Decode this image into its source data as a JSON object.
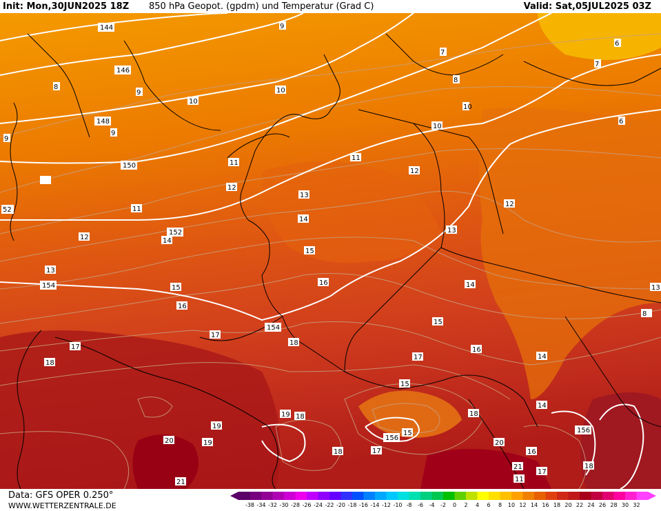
{
  "header": {
    "init": "Init: Mon,30JUN2025 18Z",
    "title": "850 hPa Geopot. (gpdm) und Temperatur (Grad C)",
    "valid": "Valid: Sat,05JUL2025 03Z"
  },
  "footer": {
    "data_source": "Data: GFS OPER 0.250°",
    "website": "WWW.WETTERZENTRALE.DE"
  },
  "colors": {
    "background_field": "#d9461e",
    "geopotential_contour": "#ffffff",
    "isotherm": "#c0a080",
    "borders": "#000000"
  },
  "color_scale": {
    "ticks": [
      "-38",
      "-34",
      "-32",
      "-30",
      "-28",
      "-26",
      "-24",
      "-22",
      "-20",
      "-18",
      "-16",
      "-14",
      "-12",
      "-10",
      "-8",
      "-6",
      "-4",
      "-2",
      "0",
      "2",
      "4",
      "6",
      "8",
      "10",
      "12",
      "14",
      "16",
      "18",
      "20",
      "22",
      "24",
      "26",
      "28",
      "30",
      "32"
    ],
    "swatches": [
      "#5a0068",
      "#76007e",
      "#920096",
      "#b000b4",
      "#cc00d4",
      "#ee00ee",
      "#c000ff",
      "#9000ff",
      "#6400ff",
      "#3030ff",
      "#0050ff",
      "#0080ff",
      "#00a8ff",
      "#00c8ff",
      "#00e0e0",
      "#00e0b0",
      "#00d080",
      "#00c850",
      "#00c000",
      "#60d000",
      "#c0e000",
      "#ffff00",
      "#ffe000",
      "#ffc000",
      "#ffa000",
      "#f08000",
      "#e86000",
      "#e04010",
      "#d02818",
      "#c01818",
      "#a80018",
      "#c00040",
      "#e00070",
      "#ff00a0",
      "#ff20d0",
      "#ff40ff"
    ]
  },
  "map_labels": {
    "geopotential": [
      "144",
      "146",
      "148",
      "150",
      "152",
      "154",
      "154",
      "156",
      "156",
      "52"
    ],
    "temperature": [
      "9",
      "7",
      "6",
      "7",
      "8",
      "8",
      "9",
      "6",
      "9",
      "10",
      "10",
      "10",
      "11",
      "11",
      "11",
      "12",
      "12",
      "12",
      "13",
      "13",
      "13",
      "14",
      "14",
      "14",
      "14",
      "15",
      "15",
      "15",
      "15",
      "15",
      "16",
      "16",
      "16",
      "16",
      "17",
      "17",
      "17",
      "17",
      "17",
      "18",
      "18",
      "18",
      "18",
      "18",
      "18",
      "19",
      "19",
      "19",
      "20",
      "20",
      "21",
      "21",
      "11",
      "12",
      "13",
      "14",
      "8",
      "9",
      "10"
    ]
  }
}
